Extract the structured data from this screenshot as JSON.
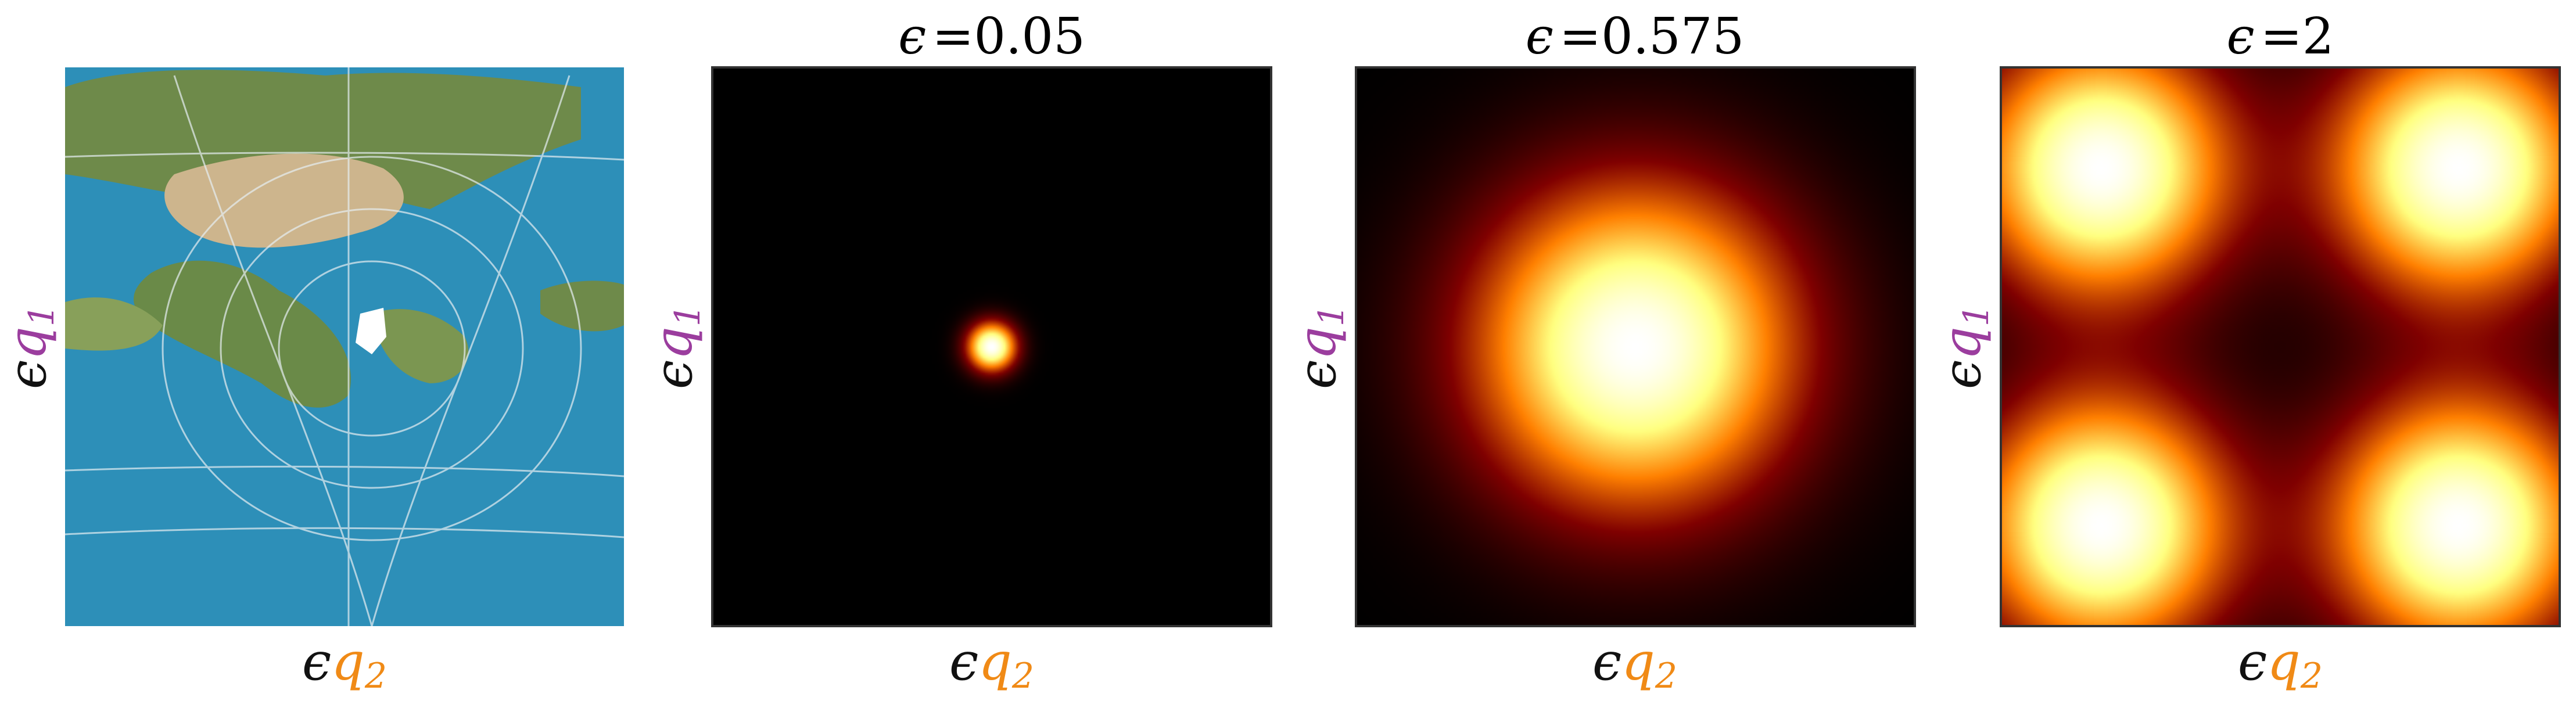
{
  "chart_data": [
    {
      "type": "image",
      "title": "",
      "xlabel": {
        "prefix": "ϵ",
        "var": "q",
        "sub": "2"
      },
      "ylabel": {
        "prefix": "ϵ",
        "var": "q",
        "sub": "1"
      },
      "content": "earth-map-projection",
      "colors": {
        "ocean": "#2d8fb8",
        "land": "#6e8a4a",
        "desert": "#cdb58d",
        "grid": "#e6eef2",
        "ice": "#ffffff"
      }
    },
    {
      "type": "heatmap",
      "epsilon_label": "ϵ",
      "epsilon": "0.05",
      "title_eq": "=",
      "xlabel": {
        "prefix": "ϵ",
        "var": "q",
        "sub": "2"
      },
      "ylabel": {
        "prefix": "ϵ",
        "var": "q",
        "sub": "1"
      },
      "colormap": "afmhot",
      "pattern": "single-peak",
      "peaks": [
        {
          "x": 0.5,
          "y": 0.5,
          "spread": 0.03
        }
      ]
    },
    {
      "type": "heatmap",
      "epsilon_label": "ϵ",
      "epsilon": "0.575",
      "title_eq": "=",
      "xlabel": {
        "prefix": "ϵ",
        "var": "q",
        "sub": "2"
      },
      "ylabel": {
        "prefix": "ϵ",
        "var": "q",
        "sub": "1"
      },
      "colormap": "afmhot",
      "pattern": "single-peak",
      "peaks": [
        {
          "x": 0.5,
          "y": 0.5,
          "spread": 0.2
        }
      ]
    },
    {
      "type": "heatmap",
      "epsilon_label": "ϵ",
      "epsilon": "2",
      "title_eq": "=",
      "xlabel": {
        "prefix": "ϵ",
        "var": "q",
        "sub": "2"
      },
      "ylabel": {
        "prefix": "ϵ",
        "var": "q",
        "sub": "1"
      },
      "colormap": "afmhot",
      "pattern": "four-peaks",
      "peaks": [
        {
          "x": 0.18,
          "y": 0.18,
          "spread": 0.16
        },
        {
          "x": 0.82,
          "y": 0.18,
          "spread": 0.16
        },
        {
          "x": 0.18,
          "y": 0.82,
          "spread": 0.16
        },
        {
          "x": 0.82,
          "y": 0.82,
          "spread": 0.16
        }
      ]
    }
  ],
  "colors": {
    "q1_color": "#9b3d9e",
    "q2_color": "#f08a16",
    "eps_color": "#111111",
    "frame": "#333333"
  }
}
